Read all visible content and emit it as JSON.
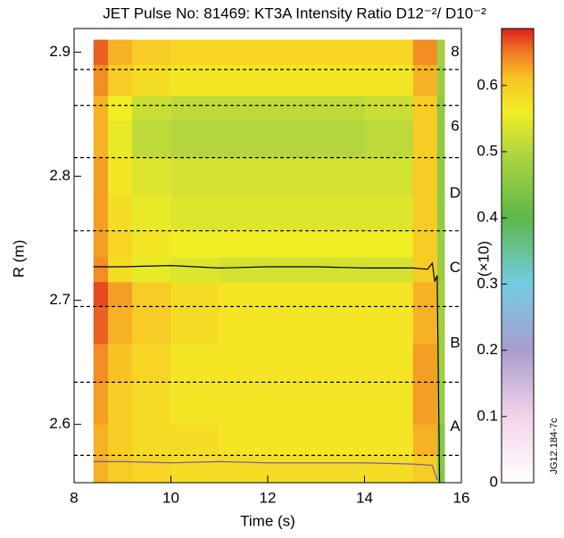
{
  "chart_data": {
    "type": "heatmap",
    "title": "JET Pulse No: 81469: KT3A Intensity Ratio D12⁻²/ D10⁻²",
    "xlabel": "Time (s)",
    "ylabel": "R (m)",
    "xlim": [
      8,
      16
    ],
    "xticks": [
      8,
      10,
      12,
      14,
      16
    ],
    "ylim": [
      2.553,
      2.919
    ],
    "yticks": [
      2.6,
      2.7,
      2.8,
      2.9
    ],
    "x_edges": [
      8.4,
      8.7,
      9.2,
      10,
      11,
      12,
      13,
      14,
      15,
      15.5,
      15.65
    ],
    "y_edges": [
      2.553,
      2.575,
      2.6,
      2.634,
      2.665,
      2.695,
      2.715,
      2.735,
      2.756,
      2.785,
      2.815,
      2.845,
      2.865,
      2.89,
      2.91
    ],
    "values": [
      [
        0.62,
        0.6,
        0.59,
        0.58,
        0.58,
        0.58,
        0.58,
        0.58,
        0.6,
        0.45
      ],
      [
        0.62,
        0.6,
        0.58,
        0.58,
        0.57,
        0.57,
        0.57,
        0.57,
        0.62,
        0.45
      ],
      [
        0.63,
        0.6,
        0.58,
        0.57,
        0.57,
        0.57,
        0.57,
        0.57,
        0.63,
        0.47
      ],
      [
        0.64,
        0.61,
        0.59,
        0.57,
        0.57,
        0.57,
        0.57,
        0.57,
        0.63,
        0.48
      ],
      [
        0.66,
        0.62,
        0.6,
        0.58,
        0.57,
        0.57,
        0.57,
        0.57,
        0.62,
        0.48
      ],
      [
        0.67,
        0.63,
        0.6,
        0.58,
        0.57,
        0.57,
        0.57,
        0.57,
        0.62,
        0.48
      ],
      [
        0.64,
        0.58,
        0.55,
        0.54,
        0.53,
        0.53,
        0.53,
        0.53,
        0.6,
        0.47
      ],
      [
        0.63,
        0.59,
        0.57,
        0.56,
        0.56,
        0.56,
        0.56,
        0.56,
        0.6,
        0.47
      ],
      [
        0.63,
        0.58,
        0.55,
        0.54,
        0.54,
        0.54,
        0.54,
        0.54,
        0.6,
        0.46
      ],
      [
        0.63,
        0.57,
        0.54,
        0.53,
        0.53,
        0.53,
        0.53,
        0.53,
        0.6,
        0.46
      ],
      [
        0.62,
        0.55,
        0.51,
        0.5,
        0.5,
        0.5,
        0.5,
        0.51,
        0.6,
        0.46
      ],
      [
        0.62,
        0.56,
        0.52,
        0.51,
        0.51,
        0.51,
        0.51,
        0.52,
        0.6,
        0.46
      ],
      [
        0.64,
        0.6,
        0.58,
        0.57,
        0.57,
        0.57,
        0.57,
        0.57,
        0.62,
        0.47
      ],
      [
        0.66,
        0.62,
        0.6,
        0.59,
        0.59,
        0.59,
        0.59,
        0.59,
        0.64,
        0.48
      ]
    ],
    "hlines": [
      2.575,
      2.634,
      2.695,
      2.756,
      2.815,
      2.857,
      2.886
    ],
    "region_labels": [
      {
        "text": "8",
        "y": 2.9
      },
      {
        "text": "6",
        "y": 2.84
      },
      {
        "text": "D",
        "y": 2.786
      },
      {
        "text": "C",
        "y": 2.726
      },
      {
        "text": "B",
        "y": 2.665
      },
      {
        "text": "A",
        "y": 2.598
      }
    ],
    "series": [
      {
        "color": "#000000",
        "x": [
          8.4,
          9,
          10,
          11,
          12,
          13,
          14,
          15,
          15.3,
          15.4,
          15.45,
          15.5,
          15.55
        ],
        "values": [
          2.727,
          2.727,
          2.728,
          2.726,
          2.727,
          2.727,
          2.726,
          2.726,
          2.725,
          2.73,
          2.715,
          2.72,
          2.553
        ]
      },
      {
        "color": "#7a5a9a",
        "x": [
          8.4,
          9,
          10,
          11,
          12,
          13,
          14,
          15,
          15.4,
          15.5
        ],
        "values": [
          2.57,
          2.57,
          2.569,
          2.57,
          2.569,
          2.569,
          2.569,
          2.568,
          2.567,
          2.555
        ]
      }
    ],
    "colorbar": {
      "label": "(×10)",
      "lim": [
        0,
        0.686
      ],
      "ticks": [
        0,
        0.1,
        0.2,
        0.3,
        0.4,
        0.5,
        0.6
      ]
    },
    "colorscale": [
      [
        0,
        "#ffffff"
      ],
      [
        0.1,
        "#f2d4ea"
      ],
      [
        0.2,
        "#a89ccc"
      ],
      [
        0.3,
        "#74cce4"
      ],
      [
        0.4,
        "#5cb84a"
      ],
      [
        0.5,
        "#b4d63e"
      ],
      [
        0.56,
        "#f2ee24"
      ],
      [
        0.61,
        "#f8c424"
      ],
      [
        0.65,
        "#f07a24"
      ],
      [
        0.686,
        "#dc2020"
      ]
    ],
    "code": "JG12.184-7c"
  }
}
